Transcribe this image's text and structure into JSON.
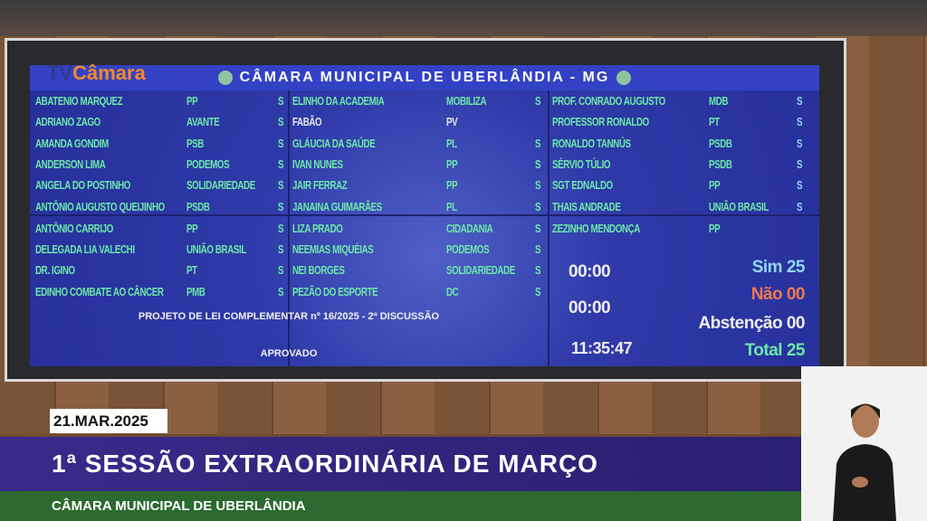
{
  "logo": {
    "tv": "TV",
    "camara": "Câmara"
  },
  "board": {
    "header": "CÂMARA MUNICIPAL DE UBERLÂNDIA - MG",
    "columns": [
      [
        [
          "ABATENIO MARQUEZ",
          "PP",
          "S"
        ],
        [
          "ADRIANO ZAGO",
          "AVANTE",
          "S"
        ],
        [
          "AMANDA GONDIM",
          "PSB",
          "S"
        ],
        [
          "ANDERSON LIMA",
          "PODEMOS",
          "S"
        ],
        [
          "ANGELA DO POSTINHO",
          "SOLIDARIEDADE",
          "S"
        ],
        [
          "ANTÔNIO AUGUSTO QUEIJINHO",
          "PSDB",
          "S"
        ],
        [
          "ANTÔNIO CARRIJO",
          "PP",
          "S"
        ],
        [
          "DELEGADA LIA VALECHI",
          "UNIÃO BRASIL",
          "S"
        ],
        [
          "DR. IGINO",
          "PT",
          "S"
        ],
        [
          "EDINHO COMBATE AO CÂNCER",
          "PMB",
          "S"
        ]
      ],
      [
        [
          "ELINHO DA ACADEMIA",
          "MOBILIZA",
          "S"
        ],
        [
          "FABÃO",
          "PV",
          ""
        ],
        [
          "GLÁUCIA DA SAÚDE",
          "PL",
          "S"
        ],
        [
          "IVAN NUNES",
          "PP",
          "S"
        ],
        [
          "JAIR FERRAZ",
          "PP",
          "S"
        ],
        [
          "JANAINA GUIMARÃES",
          "PL",
          "S"
        ],
        [
          "LIZA PRADO",
          "CIDADANIA",
          "S"
        ],
        [
          "NEEMIAS MIQUÉIAS",
          "PODEMOS",
          "S"
        ],
        [
          "NEI BORGES",
          "SOLIDARIEDADE",
          "S"
        ],
        [
          "PEZÃO DO ESPORTE",
          "DC",
          "S"
        ]
      ],
      [
        [
          "PROF. CONRADO AUGUSTO",
          "MDB",
          "S"
        ],
        [
          "PROFESSOR RONALDO",
          "PT",
          "S"
        ],
        [
          "RONALDO TANNÚS",
          "PSDB",
          "S"
        ],
        [
          "SÉRVIO TÚLIO",
          "PSDB",
          "S"
        ],
        [
          "SGT EDNALDO",
          "PP",
          "S"
        ],
        [
          "THAIS ANDRADE",
          "UNIÃO BRASIL",
          "S"
        ],
        [
          "ZEZINHO MENDONÇA",
          "PP",
          ""
        ]
      ]
    ],
    "project": "PROJETO DE LEI COMPLEMENTAR nº 16/2025 - 2ª DISCUSSÃO",
    "result": "APROVADO",
    "timer1": "00:00",
    "timer2": "00:00",
    "clock": "11:35:47",
    "sim": "Sim 25",
    "nao": "Não 00",
    "abstencao": "Abstenção 00",
    "total": "Total 25"
  },
  "colors": {
    "name": "#6be8a8",
    "sim": "#8fd8f0",
    "nao": "#f07850",
    "total": "#6be8a8",
    "title_bar": "#3a2a8a",
    "sub_bar": "#2c6a30"
  },
  "overlay": {
    "date": "21.MAR.2025",
    "title": "1ª SESSÃO EXTRAORDINÁRIA DE MARÇO",
    "subtitle": "CÂMARA MUNICIPAL DE UBERLÂNDIA"
  }
}
